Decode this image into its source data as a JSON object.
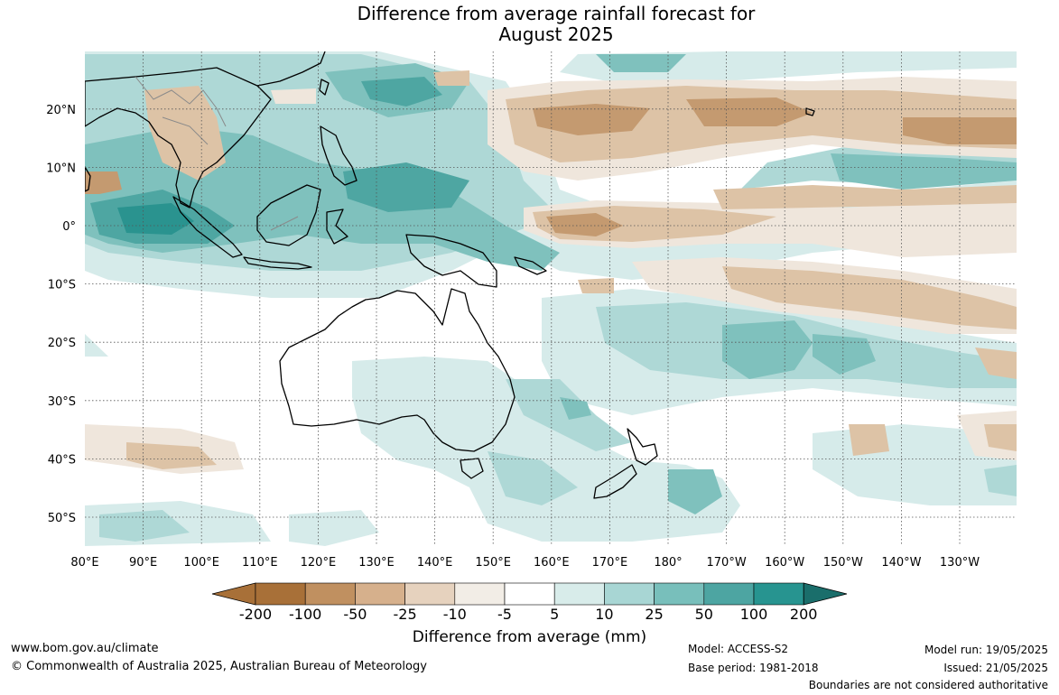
{
  "title": {
    "line1": "Difference from average rainfall forecast for",
    "line2": "August 2025"
  },
  "map": {
    "lon_labels": [
      "80°E",
      "90°E",
      "100°E",
      "110°E",
      "120°E",
      "130°E",
      "140°E",
      "150°E",
      "160°E",
      "170°E",
      "180°",
      "170°W",
      "160°W",
      "150°W",
      "140°W",
      "130°W"
    ],
    "lat_labels": [
      "20°N",
      "10°N",
      "0°",
      "10°S",
      "20°S",
      "30°S",
      "40°S",
      "50°S"
    ],
    "legend_colors": {
      "dry_strong": "#a86f3b",
      "dry_moderate": "#c49a70",
      "dry_light": "#ddc3a6",
      "dry_faint": "#efe6dc",
      "wet_faint": "#d6ebea",
      "wet_light": "#aed8d6",
      "wet_moderate": "#7fc1bd",
      "wet_strong": "#4ea6a2",
      "wet_extreme": "#2a938f"
    }
  },
  "colorbar": {
    "title": "Difference from average (mm)",
    "ticks": [
      "-200",
      "-100",
      "-50",
      "-25",
      "-10",
      "-5",
      "5",
      "10",
      "25",
      "50",
      "100",
      "200"
    ],
    "colors": [
      "#a87038",
      "#c09060",
      "#d6b08c",
      "#e6d2be",
      "#f2ede6",
      "#ffffff",
      "#d8ecea",
      "#a8d6d4",
      "#78bfbb",
      "#4da5a2",
      "#279490",
      "#1a6e6b"
    ]
  },
  "footer": {
    "website": "www.bom.gov.au/climate",
    "copyright": "© Commonwealth of Australia 2025, Australian Bureau of Meteorology",
    "model": "Model: ACCESS-S2",
    "base_period": "Base period: 1981-2018",
    "model_run": "Model run: 19/05/2025",
    "issued": "Issued: 21/05/2025",
    "disclaimer": "Boundaries are not considered authoritative"
  }
}
